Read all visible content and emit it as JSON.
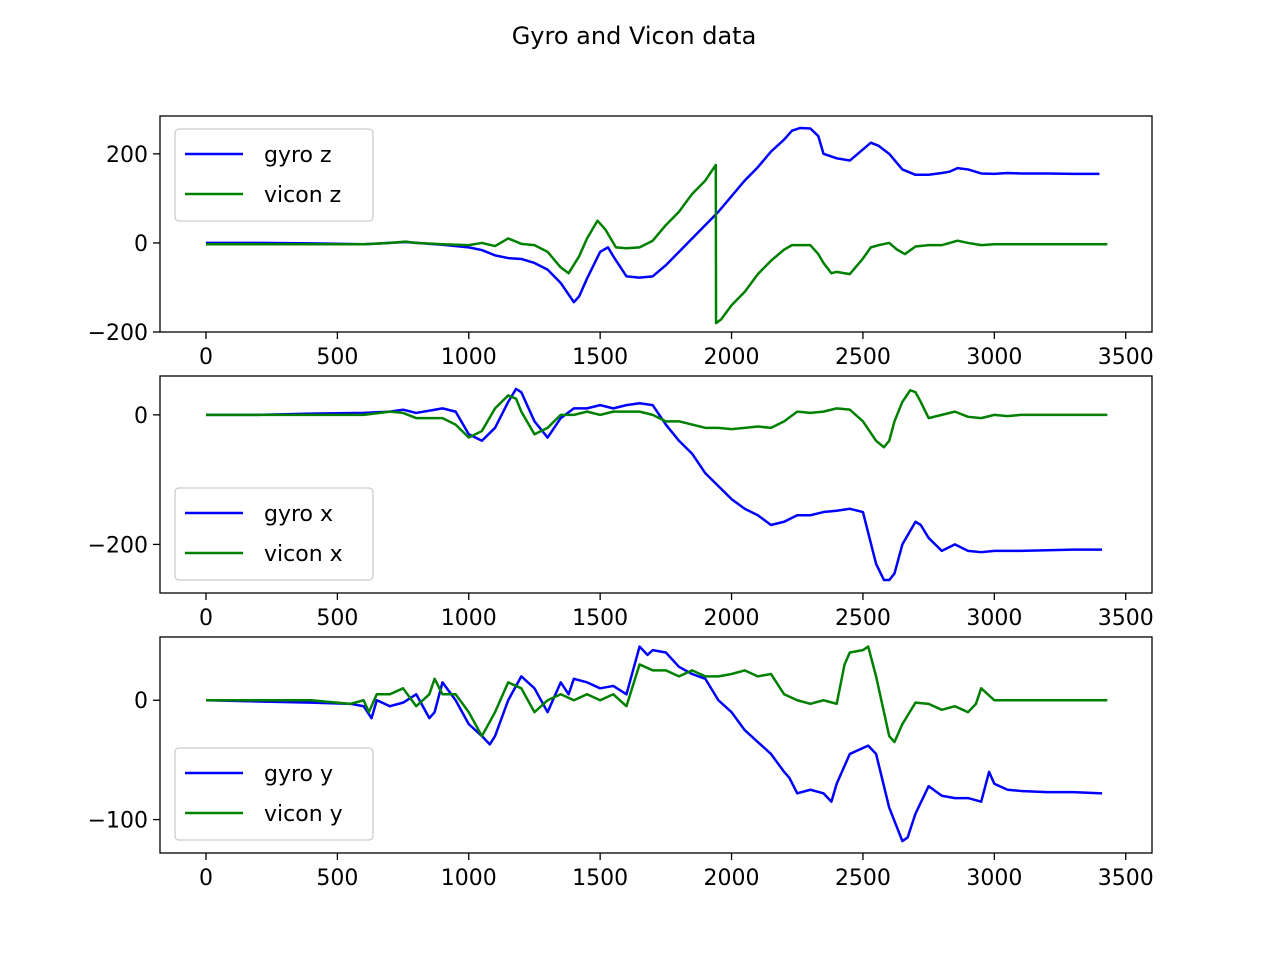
{
  "figure": {
    "title": "Gyro and Vicon data"
  },
  "colors": {
    "gyro": "#0000ff",
    "vicon": "#008000",
    "axes": "#000000",
    "background": "#ffffff"
  },
  "chart_data": [
    {
      "type": "line",
      "xlim": [
        -175,
        3600
      ],
      "ylim": [
        -200,
        285
      ],
      "xticks": [
        0,
        500,
        1000,
        1500,
        2000,
        2500,
        3000,
        3500
      ],
      "yticks": [
        -200,
        0,
        200
      ],
      "legend": "upper-left",
      "grid": false,
      "series": [
        {
          "name": "gyro z",
          "color": "#0000ff",
          "x": [
            0,
            200,
            400,
            600,
            700,
            760,
            800,
            900,
            1000,
            1050,
            1100,
            1150,
            1200,
            1250,
            1300,
            1350,
            1400,
            1420,
            1450,
            1500,
            1530,
            1550,
            1600,
            1650,
            1700,
            1750,
            1800,
            1850,
            1900,
            1950,
            2000,
            2050,
            2100,
            2150,
            2200,
            2230,
            2260,
            2300,
            2330,
            2350,
            2400,
            2450,
            2500,
            2530,
            2560,
            2600,
            2650,
            2700,
            2750,
            2800,
            2830,
            2860,
            2900,
            2950,
            3000,
            3050,
            3100,
            3200,
            3300,
            3400
          ],
          "y": [
            0,
            0,
            -1,
            -3,
            0,
            2,
            0,
            -4,
            -10,
            -16,
            -28,
            -34,
            -36,
            -45,
            -60,
            -90,
            -133,
            -120,
            -80,
            -20,
            -10,
            -30,
            -75,
            -78,
            -75,
            -50,
            -20,
            10,
            40,
            70,
            105,
            140,
            170,
            205,
            232,
            252,
            258,
            257,
            240,
            200,
            190,
            185,
            210,
            225,
            218,
            200,
            165,
            153,
            153,
            157,
            160,
            168,
            165,
            156,
            155,
            157,
            156,
            156,
            155,
            155
          ]
        },
        {
          "name": "vicon z",
          "color": "#008000",
          "x": [
            0,
            200,
            400,
            600,
            700,
            760,
            800,
            900,
            1000,
            1050,
            1100,
            1150,
            1200,
            1250,
            1300,
            1350,
            1380,
            1420,
            1450,
            1490,
            1520,
            1560,
            1600,
            1650,
            1700,
            1750,
            1800,
            1850,
            1900,
            1940,
            1941,
            1960,
            2000,
            2050,
            2100,
            2150,
            2200,
            2230,
            2260,
            2300,
            2330,
            2350,
            2380,
            2400,
            2450,
            2500,
            2530,
            2560,
            2600,
            2630,
            2660,
            2700,
            2750,
            2800,
            2830,
            2860,
            2900,
            2950,
            3000,
            3050,
            3100,
            3200,
            3300,
            3430
          ],
          "y": [
            -3,
            -3,
            -3,
            -3,
            0,
            3,
            0,
            -3,
            -5,
            0,
            -7,
            10,
            -2,
            -5,
            -20,
            -55,
            -68,
            -30,
            10,
            50,
            30,
            -10,
            -12,
            -10,
            5,
            40,
            70,
            110,
            140,
            175,
            -180,
            -172,
            -140,
            -110,
            -70,
            -40,
            -15,
            -5,
            -5,
            -5,
            -25,
            -45,
            -68,
            -65,
            -70,
            -35,
            -10,
            -5,
            0,
            -15,
            -25,
            -8,
            -5,
            -5,
            0,
            5,
            0,
            -5,
            -3,
            -3,
            -3,
            -3,
            -3,
            -3
          ]
        }
      ]
    },
    {
      "type": "line",
      "xlim": [
        -175,
        3600
      ],
      "ylim": [
        -275,
        60
      ],
      "xticks": [
        0,
        500,
        1000,
        1500,
        2000,
        2500,
        3000,
        3500
      ],
      "yticks": [
        -200,
        0
      ],
      "legend": "lower-left",
      "grid": false,
      "series": [
        {
          "name": "gyro x",
          "color": "#0000ff",
          "x": [
            0,
            200,
            400,
            600,
            700,
            750,
            800,
            900,
            950,
            1000,
            1050,
            1100,
            1150,
            1180,
            1200,
            1250,
            1300,
            1350,
            1400,
            1450,
            1500,
            1550,
            1600,
            1650,
            1700,
            1750,
            1800,
            1850,
            1900,
            1950,
            2000,
            2050,
            2100,
            2150,
            2200,
            2250,
            2300,
            2350,
            2400,
            2450,
            2500,
            2550,
            2580,
            2600,
            2620,
            2650,
            2700,
            2720,
            2750,
            2800,
            2850,
            2900,
            2950,
            3000,
            3050,
            3100,
            3200,
            3300,
            3410
          ],
          "y": [
            0,
            0,
            2,
            3,
            5,
            8,
            3,
            10,
            5,
            -30,
            -40,
            -20,
            20,
            40,
            35,
            -10,
            -35,
            -5,
            10,
            10,
            15,
            10,
            15,
            18,
            15,
            -15,
            -40,
            -60,
            -90,
            -110,
            -130,
            -145,
            -155,
            -170,
            -165,
            -155,
            -155,
            -150,
            -148,
            -145,
            -150,
            -230,
            -255,
            -255,
            -245,
            -200,
            -165,
            -170,
            -190,
            -210,
            -200,
            -210,
            -212,
            -210,
            -210,
            -210,
            -209,
            -208,
            -208
          ]
        },
        {
          "name": "vicon x",
          "color": "#008000",
          "x": [
            0,
            200,
            400,
            600,
            700,
            750,
            800,
            900,
            950,
            1000,
            1050,
            1100,
            1150,
            1180,
            1200,
            1250,
            1300,
            1350,
            1400,
            1450,
            1500,
            1550,
            1600,
            1650,
            1700,
            1750,
            1800,
            1850,
            1900,
            1950,
            2000,
            2050,
            2100,
            2150,
            2200,
            2250,
            2300,
            2350,
            2400,
            2450,
            2500,
            2550,
            2580,
            2600,
            2620,
            2650,
            2680,
            2700,
            2720,
            2750,
            2800,
            2850,
            2900,
            2950,
            3000,
            3050,
            3100,
            3200,
            3300,
            3430
          ],
          "y": [
            0,
            0,
            0,
            0,
            5,
            3,
            -5,
            -5,
            -15,
            -35,
            -25,
            10,
            30,
            25,
            5,
            -30,
            -20,
            0,
            0,
            5,
            0,
            5,
            5,
            5,
            0,
            -10,
            -10,
            -15,
            -20,
            -20,
            -22,
            -20,
            -18,
            -20,
            -10,
            5,
            3,
            5,
            10,
            8,
            -10,
            -40,
            -50,
            -40,
            -10,
            20,
            38,
            35,
            20,
            -5,
            0,
            5,
            -3,
            -5,
            0,
            -2,
            0,
            0,
            0,
            0
          ]
        }
      ]
    },
    {
      "type": "line",
      "xlim": [
        -175,
        3600
      ],
      "ylim": [
        -128,
        53
      ],
      "xticks": [
        0,
        500,
        1000,
        1500,
        2000,
        2500,
        3000,
        3500
      ],
      "yticks": [
        -100,
        0
      ],
      "legend": "lower-left",
      "grid": false,
      "series": [
        {
          "name": "gyro y",
          "color": "#0000ff",
          "x": [
            0,
            200,
            400,
            550,
            600,
            630,
            650,
            700,
            750,
            800,
            850,
            870,
            900,
            950,
            1000,
            1050,
            1080,
            1100,
            1150,
            1200,
            1250,
            1300,
            1350,
            1380,
            1400,
            1450,
            1500,
            1550,
            1600,
            1650,
            1680,
            1700,
            1750,
            1800,
            1850,
            1900,
            1950,
            2000,
            2050,
            2100,
            2150,
            2200,
            2220,
            2250,
            2300,
            2350,
            2380,
            2400,
            2450,
            2500,
            2520,
            2550,
            2600,
            2650,
            2670,
            2700,
            2750,
            2800,
            2850,
            2900,
            2950,
            2980,
            3000,
            3050,
            3100,
            3200,
            3300,
            3410
          ],
          "y": [
            0,
            -1,
            -2,
            -3,
            -5,
            -15,
            0,
            -5,
            -2,
            5,
            -15,
            -10,
            15,
            0,
            -20,
            -30,
            -37,
            -30,
            0,
            20,
            10,
            -10,
            15,
            5,
            18,
            15,
            10,
            12,
            5,
            45,
            38,
            42,
            40,
            28,
            22,
            18,
            0,
            -10,
            -25,
            -35,
            -45,
            -60,
            -65,
            -78,
            -75,
            -78,
            -85,
            -70,
            -45,
            -40,
            -38,
            -45,
            -90,
            -118,
            -115,
            -95,
            -72,
            -80,
            -82,
            -82,
            -85,
            -60,
            -70,
            -75,
            -76,
            -77,
            -77,
            -78
          ]
        },
        {
          "name": "vicon y",
          "color": "#008000",
          "x": [
            0,
            200,
            400,
            550,
            600,
            620,
            650,
            700,
            750,
            800,
            850,
            870,
            900,
            950,
            1000,
            1050,
            1100,
            1150,
            1200,
            1250,
            1300,
            1350,
            1400,
            1450,
            1500,
            1550,
            1600,
            1650,
            1700,
            1750,
            1800,
            1850,
            1900,
            1950,
            2000,
            2050,
            2100,
            2150,
            2200,
            2250,
            2300,
            2350,
            2400,
            2430,
            2450,
            2500,
            2520,
            2550,
            2600,
            2620,
            2650,
            2700,
            2750,
            2800,
            2850,
            2900,
            2930,
            2950,
            3000,
            3050,
            3100,
            3200,
            3300,
            3430
          ],
          "y": [
            0,
            0,
            0,
            -3,
            0,
            -10,
            5,
            5,
            10,
            -5,
            5,
            18,
            5,
            5,
            -10,
            -30,
            -10,
            15,
            10,
            -10,
            0,
            5,
            0,
            5,
            0,
            5,
            -5,
            30,
            25,
            25,
            20,
            25,
            20,
            20,
            22,
            25,
            20,
            22,
            5,
            0,
            -3,
            0,
            -3,
            30,
            40,
            42,
            45,
            20,
            -30,
            -35,
            -20,
            -2,
            -3,
            -8,
            -5,
            -10,
            -3,
            10,
            0,
            0,
            0,
            0,
            0,
            0
          ]
        }
      ]
    }
  ]
}
